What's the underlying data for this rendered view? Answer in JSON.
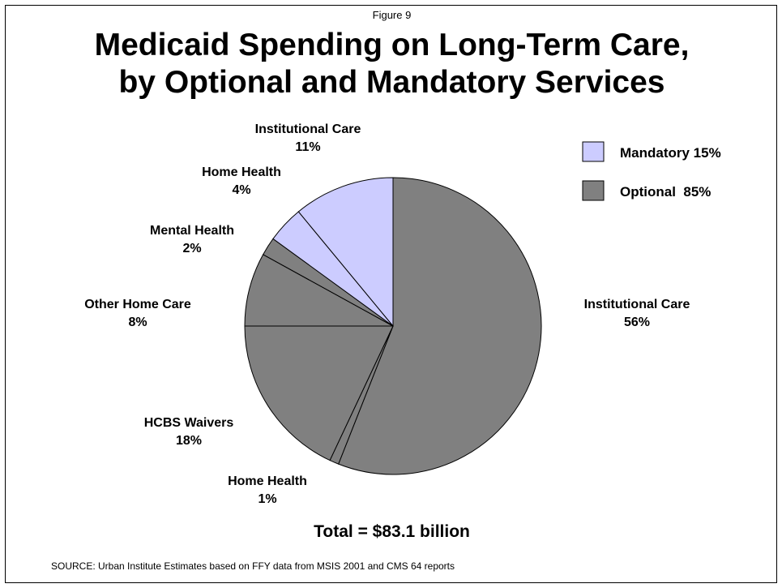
{
  "figure_label": "Figure 9",
  "title_line1": "Medicaid Spending on Long-Term Care,",
  "title_line2": "by Optional and Mandatory Services",
  "total_text": "Total = $83.1 billion",
  "source_text": "SOURCE: Urban Institute Estimates based on FFY data from MSIS 2001 and CMS 64 reports",
  "colors": {
    "mandatory": "#CCCCFF",
    "optional": "#808080",
    "outline": "#000000"
  },
  "chart_data": {
    "type": "pie",
    "title": "Medicaid Spending on Long-Term Care, by Optional and Mandatory Services",
    "total": "Total = $83.1 billion",
    "slices": [
      {
        "label": "Institutional Care",
        "pct_text": "56%",
        "value": 56,
        "group": "Optional"
      },
      {
        "label": "Home Health",
        "pct_text": "1%",
        "value": 1,
        "group": "Optional"
      },
      {
        "label": "HCBS Waivers",
        "pct_text": "18%",
        "value": 18,
        "group": "Optional"
      },
      {
        "label": "Other Home Care",
        "pct_text": "8%",
        "value": 8,
        "group": "Optional"
      },
      {
        "label": "Mental Health",
        "pct_text": "2%",
        "value": 2,
        "group": "Optional"
      },
      {
        "label": "Home Health",
        "pct_text": "4%",
        "value": 4,
        "group": "Mandatory"
      },
      {
        "label": "Institutional Care",
        "pct_text": "11%",
        "value": 11,
        "group": "Mandatory"
      }
    ],
    "legend": [
      {
        "label": "Mandatory 15%",
        "group": "Mandatory"
      },
      {
        "label": "Optional  85%",
        "group": "Optional"
      }
    ],
    "legend_position": "top-right"
  }
}
